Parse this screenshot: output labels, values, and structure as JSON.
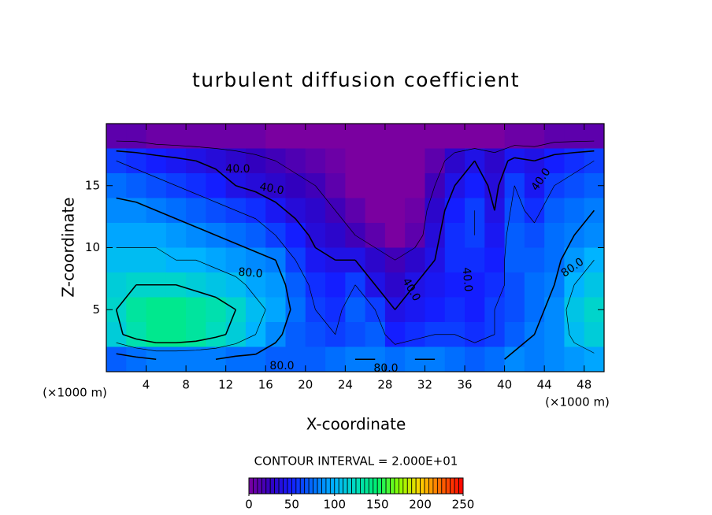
{
  "chart_data": {
    "type": "contour",
    "title": "turbulent diffusion coefficient",
    "xlabel": "X-coordinate",
    "ylabel": "Z-coordinate",
    "axis_unit": "(×1000 m)",
    "xlim": [
      0,
      50
    ],
    "ylim": [
      0,
      20
    ],
    "xticks": [
      4,
      8,
      12,
      16,
      20,
      24,
      28,
      32,
      36,
      40,
      44,
      48
    ],
    "yticks": [
      5,
      10,
      15
    ],
    "x": [
      1,
      3,
      5,
      7,
      9,
      11,
      13,
      15,
      17,
      19,
      21,
      23,
      25,
      27,
      29,
      31,
      33,
      35,
      37,
      39,
      41,
      43,
      45,
      47,
      49
    ],
    "y": [
      19,
      17,
      15,
      13,
      11,
      9,
      7,
      5,
      3,
      1
    ],
    "z": [
      [
        10,
        10,
        5,
        5,
        5,
        5,
        5,
        5,
        0,
        0,
        0,
        0,
        0,
        0,
        0,
        0,
        0,
        0,
        0,
        0,
        5,
        5,
        10,
        10,
        10
      ],
      [
        60,
        55,
        50,
        45,
        40,
        35,
        30,
        25,
        20,
        15,
        10,
        5,
        0,
        0,
        0,
        0,
        10,
        30,
        40,
        30,
        45,
        40,
        50,
        55,
        60
      ],
      [
        75,
        70,
        65,
        60,
        55,
        50,
        40,
        35,
        30,
        25,
        20,
        10,
        0,
        0,
        0,
        0,
        20,
        40,
        50,
        35,
        60,
        45,
        60,
        65,
        70
      ],
      [
        85,
        85,
        80,
        75,
        70,
        65,
        60,
        55,
        45,
        35,
        30,
        20,
        10,
        0,
        0,
        5,
        30,
        50,
        60,
        40,
        65,
        55,
        70,
        75,
        80
      ],
      [
        95,
        95,
        95,
        90,
        85,
        80,
        75,
        70,
        60,
        50,
        35,
        30,
        20,
        10,
        0,
        10,
        35,
        55,
        60,
        45,
        70,
        65,
        75,
        80,
        85
      ],
      [
        105,
        105,
        105,
        100,
        100,
        95,
        90,
        85,
        80,
        60,
        45,
        40,
        40,
        30,
        20,
        30,
        40,
        55,
        55,
        50,
        70,
        70,
        75,
        90,
        100
      ],
      [
        115,
        120,
        120,
        120,
        115,
        110,
        105,
        95,
        90,
        70,
        55,
        50,
        60,
        40,
        30,
        40,
        45,
        50,
        50,
        55,
        65,
        75,
        80,
        100,
        110
      ],
      [
        120,
        135,
        140,
        140,
        135,
        130,
        120,
        105,
        95,
        75,
        60,
        55,
        70,
        60,
        40,
        45,
        50,
        55,
        50,
        60,
        65,
        75,
        85,
        110,
        120
      ],
      [
        115,
        130,
        140,
        140,
        135,
        125,
        115,
        100,
        85,
        70,
        65,
        60,
        65,
        70,
        50,
        55,
        60,
        60,
        55,
        60,
        70,
        80,
        85,
        105,
        115
      ],
      [
        70,
        75,
        80,
        80,
        80,
        80,
        75,
        75,
        70,
        70,
        70,
        75,
        80,
        80,
        75,
        80,
        80,
        75,
        70,
        75,
        85,
        80,
        85,
        90,
        95
      ]
    ],
    "contour_interval": {
      "value": 20,
      "label": "CONTOUR INTERVAL = 2.000E+01"
    },
    "contour_labels": [
      {
        "value": 40,
        "label": "40.0"
      },
      {
        "value": 40,
        "label": "40.0"
      },
      {
        "value": 80,
        "label": "80.0"
      },
      {
        "value": 80,
        "label": "80.0"
      },
      {
        "value": 80,
        "label": "80.0"
      },
      {
        "value": 40,
        "label": "40.0"
      },
      {
        "value": 40,
        "label": "40.0"
      },
      {
        "value": 40,
        "label": "40.0"
      },
      {
        "value": 80,
        "label": "80.0"
      }
    ],
    "colorbar_lim": [
      0,
      250
    ],
    "colorbar_ticks": [
      0,
      50,
      100,
      150,
      200,
      250
    ]
  }
}
